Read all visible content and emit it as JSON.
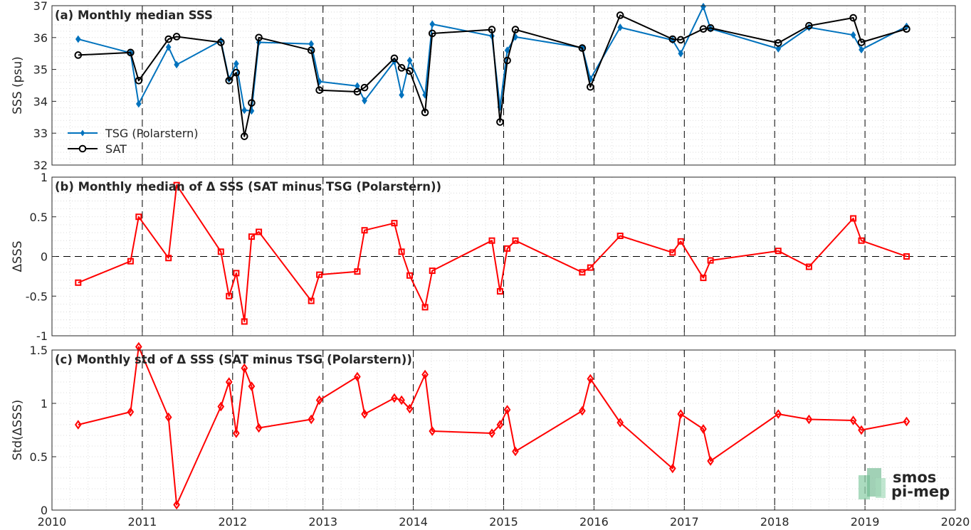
{
  "figure": {
    "x_ticks": [
      2010,
      2011,
      2012,
      2013,
      2014,
      2015,
      2016,
      2017,
      2018,
      2019,
      2020
    ],
    "x_tick_labels": [
      "2010",
      "2011",
      "2012",
      "2013",
      "2014",
      "2015",
      "2016",
      "2017",
      "2018",
      "2019",
      "2020"
    ],
    "logo": {
      "line1": "smos",
      "line2": "pi-mep",
      "color": "#6fb88f"
    }
  },
  "chart_data": [
    {
      "type": "line",
      "title": "(a) Monthly median SSS",
      "xlabel": "",
      "ylabel": "SSS (psu)",
      "xlim": [
        2010,
        2020
      ],
      "ylim": [
        32,
        37
      ],
      "y_ticks": [
        32,
        33,
        34,
        35,
        36,
        37
      ],
      "y_tick_labels": [
        "32",
        "33",
        "34",
        "35",
        "36",
        "37"
      ],
      "grid": true,
      "legend_position": "bottom-left",
      "year_lines": true,
      "series": [
        {
          "name": "TSG (Polarstern)",
          "color": "#0072bd",
          "marker": "diamond-filled",
          "x": [
            2010.29,
            2010.87,
            2010.96,
            2011.29,
            2011.38,
            2011.87,
            2011.96,
            2012.04,
            2012.13,
            2012.21,
            2012.29,
            2012.87,
            2012.96,
            2013.38,
            2013.46,
            2013.79,
            2013.87,
            2013.96,
            2014.13,
            2014.21,
            2014.87,
            2014.96,
            2015.04,
            2015.13,
            2015.87,
            2015.96,
            2016.29,
            2016.87,
            2016.96,
            2017.21,
            2017.29,
            2018.04,
            2018.38,
            2018.87,
            2018.96,
            2019.46
          ],
          "y": [
            35.95,
            35.52,
            33.92,
            35.7,
            35.15,
            35.9,
            34.7,
            35.18,
            33.72,
            33.7,
            35.85,
            35.8,
            34.62,
            34.48,
            34.02,
            35.25,
            34.2,
            35.28,
            34.2,
            36.42,
            36.05,
            33.82,
            35.6,
            36.02,
            35.68,
            34.7,
            36.32,
            35.92,
            35.5,
            36.97,
            36.28,
            35.65,
            36.32,
            36.08,
            35.62,
            36.35
          ]
        },
        {
          "name": "SAT",
          "color": "#000000",
          "marker": "circle-open",
          "x": [
            2010.29,
            2010.87,
            2010.96,
            2011.29,
            2011.38,
            2011.87,
            2011.96,
            2012.04,
            2012.13,
            2012.21,
            2012.29,
            2012.87,
            2012.96,
            2013.38,
            2013.46,
            2013.79,
            2013.87,
            2013.96,
            2014.13,
            2014.21,
            2014.87,
            2014.96,
            2015.04,
            2015.13,
            2015.87,
            2015.96,
            2016.29,
            2016.87,
            2016.96,
            2017.21,
            2017.29,
            2018.04,
            2018.38,
            2018.87,
            2018.96,
            2019.46
          ],
          "y": [
            35.45,
            35.53,
            34.65,
            35.95,
            36.03,
            35.85,
            34.65,
            34.9,
            32.9,
            33.95,
            36.0,
            35.6,
            34.35,
            34.3,
            34.43,
            35.35,
            35.05,
            34.95,
            33.65,
            36.13,
            36.25,
            33.35,
            35.28,
            36.25,
            35.67,
            34.45,
            36.7,
            35.95,
            35.93,
            36.27,
            36.3,
            35.83,
            36.37,
            36.62,
            35.85,
            36.27
          ]
        }
      ]
    },
    {
      "type": "line",
      "title": "(b) Monthly median of Δ SSS (SAT minus TSG (Polarstern))",
      "xlabel": "",
      "ylabel": "ΔSSS",
      "xlim": [
        2010,
        2020
      ],
      "ylim": [
        -1,
        1
      ],
      "y_ticks": [
        -1,
        -0.5,
        0,
        0.5,
        1
      ],
      "y_tick_labels": [
        "-1",
        "-0.5",
        "0",
        "0.5",
        "1"
      ],
      "grid": true,
      "zero_line": true,
      "year_lines": true,
      "series": [
        {
          "color": "#ff0000",
          "marker": "square-open",
          "x": [
            2010.29,
            2010.87,
            2010.96,
            2011.29,
            2011.38,
            2011.87,
            2011.96,
            2012.04,
            2012.13,
            2012.21,
            2012.29,
            2012.87,
            2012.96,
            2013.38,
            2013.46,
            2013.79,
            2013.87,
            2013.96,
            2014.13,
            2014.21,
            2014.87,
            2014.96,
            2015.04,
            2015.13,
            2015.87,
            2015.96,
            2016.29,
            2016.87,
            2016.96,
            2017.21,
            2017.29,
            2018.04,
            2018.38,
            2018.87,
            2018.96,
            2019.46
          ],
          "y": [
            -0.33,
            -0.06,
            0.5,
            -0.02,
            0.9,
            0.06,
            -0.5,
            -0.21,
            -0.82,
            0.25,
            0.31,
            -0.56,
            -0.23,
            -0.19,
            0.33,
            0.42,
            0.06,
            -0.24,
            -0.64,
            -0.18,
            0.2,
            -0.44,
            0.1,
            0.2,
            -0.2,
            -0.14,
            0.26,
            0.05,
            0.19,
            -0.27,
            -0.05,
            0.07,
            -0.13,
            0.48,
            0.2,
            0.0
          ]
        }
      ]
    },
    {
      "type": "line",
      "title": "(c) Monthly std of Δ SSS (SAT minus TSG (Polarstern))",
      "xlabel": "",
      "ylabel": "Std(ΔSSS)",
      "xlim": [
        2010,
        2020
      ],
      "ylim": [
        0,
        1.5
      ],
      "y_ticks": [
        0,
        0.5,
        1,
        1.5
      ],
      "y_tick_labels": [
        "0",
        "0.5",
        "1",
        "1.5"
      ],
      "grid": true,
      "year_lines": true,
      "series": [
        {
          "color": "#ff0000",
          "marker": "diamond-open",
          "x": [
            2010.29,
            2010.87,
            2010.96,
            2011.29,
            2011.38,
            2011.87,
            2011.96,
            2012.04,
            2012.13,
            2012.21,
            2012.29,
            2012.87,
            2012.96,
            2013.38,
            2013.46,
            2013.79,
            2013.87,
            2013.96,
            2014.13,
            2014.21,
            2014.87,
            2014.96,
            2015.04,
            2015.13,
            2015.87,
            2015.96,
            2016.29,
            2016.87,
            2016.96,
            2017.21,
            2017.29,
            2018.04,
            2018.38,
            2018.87,
            2018.96,
            2019.46
          ],
          "y": [
            0.8,
            0.92,
            1.53,
            0.87,
            0.05,
            0.97,
            1.2,
            0.72,
            1.33,
            1.16,
            0.77,
            0.85,
            1.03,
            1.25,
            0.9,
            1.05,
            1.03,
            0.95,
            1.27,
            0.74,
            0.72,
            0.8,
            0.94,
            0.55,
            0.93,
            1.23,
            0.82,
            0.39,
            0.9,
            0.76,
            0.46,
            0.9,
            0.85,
            0.84,
            0.75,
            0.83
          ]
        }
      ]
    }
  ]
}
